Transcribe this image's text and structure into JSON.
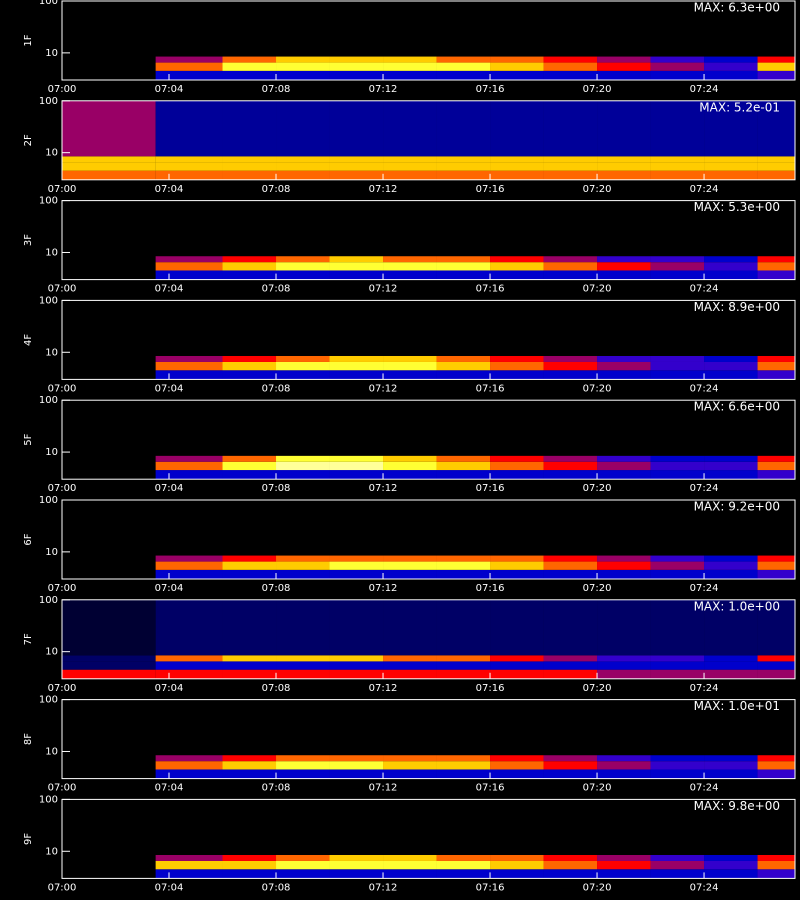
{
  "chart_data": [
    {
      "type": "heatmap",
      "ylabel": "1F",
      "annotation": "MAX: 6.3e+00",
      "log_y": true,
      "xlim": [
        0,
        27.4
      ],
      "ylim": [
        3,
        100
      ],
      "yticks": [
        10,
        100
      ],
      "xticks": [
        {
          "value": 0,
          "label": "07:00"
        },
        {
          "value": 4,
          "label": "07:04"
        },
        {
          "value": 8,
          "label": "07:08"
        },
        {
          "value": 12,
          "label": "07:12"
        },
        {
          "value": 16,
          "label": "07:16"
        },
        {
          "value": 20,
          "label": "07:20"
        },
        {
          "value": 24,
          "label": "07:24"
        }
      ],
      "xbins": [
        0,
        3.5,
        6,
        8,
        10,
        12,
        14,
        16,
        18,
        20,
        22,
        24,
        26,
        27.4
      ],
      "ybins": [
        3,
        4.5,
        6.5,
        8.5,
        100
      ],
      "zlim": [
        0,
        10
      ],
      "colormap": [
        "#000000",
        "#0000ff",
        "#ff0000",
        "#ffff00",
        "#ffffff"
      ],
      "z": [
        [
          0,
          2,
          2,
          2,
          2,
          2,
          2,
          2,
          2,
          2,
          2,
          2,
          3
        ],
        [
          0,
          6,
          8,
          8,
          8,
          8,
          8,
          7,
          6,
          5,
          4,
          3,
          7
        ],
        [
          0,
          4,
          6,
          7,
          7,
          7,
          6,
          6,
          5,
          4,
          3,
          2,
          5
        ],
        [
          0,
          0,
          0,
          0,
          0,
          0,
          0,
          0,
          0,
          0,
          0,
          0,
          0
        ]
      ]
    },
    {
      "type": "heatmap",
      "ylabel": "2F",
      "annotation": "MAX: 5.2e-01",
      "log_y": true,
      "xlim": [
        0,
        27.4
      ],
      "ylim": [
        3,
        100
      ],
      "yticks": [
        10,
        100
      ],
      "xticks": [
        {
          "value": 0,
          "label": "07:00"
        },
        {
          "value": 4,
          "label": "07:04"
        },
        {
          "value": 8,
          "label": "07:08"
        },
        {
          "value": 12,
          "label": "07:12"
        },
        {
          "value": 16,
          "label": "07:16"
        },
        {
          "value": 20,
          "label": "07:20"
        },
        {
          "value": 24,
          "label": "07:24"
        }
      ],
      "xbins": [
        0,
        3.5,
        6,
        8,
        10,
        12,
        14,
        16,
        18,
        20,
        22,
        24,
        26,
        27.4
      ],
      "ybins": [
        3,
        4.5,
        6.5,
        8.5,
        100
      ],
      "zlim": [
        0,
        10
      ],
      "colormap": [
        "#000000",
        "#0000ff",
        "#ff0000",
        "#ffff00",
        "#ffffff"
      ],
      "z": [
        [
          6,
          6,
          6,
          6,
          6,
          6,
          6,
          6,
          6,
          6,
          6,
          6,
          6
        ],
        [
          7,
          7,
          7,
          7,
          7,
          7,
          7,
          7,
          7,
          7,
          7,
          7,
          7
        ],
        [
          7,
          7,
          7,
          7,
          7,
          7,
          7,
          7,
          7,
          7,
          7,
          7,
          7
        ],
        [
          4,
          1.5,
          1.5,
          1.5,
          1.5,
          1.5,
          1.5,
          1.5,
          1.5,
          1.5,
          1.5,
          1.5,
          1.5
        ]
      ]
    },
    {
      "type": "heatmap",
      "ylabel": "3F",
      "annotation": "MAX: 5.3e+00",
      "log_y": true,
      "xlim": [
        0,
        27.4
      ],
      "ylim": [
        3,
        100
      ],
      "yticks": [
        10,
        100
      ],
      "xticks": [
        {
          "value": 0,
          "label": "07:00"
        },
        {
          "value": 4,
          "label": "07:04"
        },
        {
          "value": 8,
          "label": "07:08"
        },
        {
          "value": 12,
          "label": "07:12"
        },
        {
          "value": 16,
          "label": "07:16"
        },
        {
          "value": 20,
          "label": "07:20"
        },
        {
          "value": 24,
          "label": "07:24"
        }
      ],
      "xbins": [
        0,
        3.5,
        6,
        8,
        10,
        12,
        14,
        16,
        18,
        20,
        22,
        24,
        26,
        27.4
      ],
      "ybins": [
        3,
        4.5,
        6.5,
        8.5,
        100
      ],
      "zlim": [
        0,
        10
      ],
      "colormap": [
        "#000000",
        "#0000ff",
        "#ff0000",
        "#ffff00",
        "#ffffff"
      ],
      "z": [
        [
          0,
          2,
          2,
          2,
          2,
          2,
          2,
          2,
          2,
          2,
          2,
          2,
          3
        ],
        [
          0,
          6,
          7,
          8,
          8,
          8,
          8,
          7,
          6,
          5,
          4,
          3,
          6
        ],
        [
          0,
          4,
          5,
          6,
          7,
          6,
          6,
          5,
          4,
          3,
          3,
          2,
          5
        ],
        [
          0,
          0,
          0,
          0,
          0,
          0,
          0,
          0,
          0,
          0,
          0,
          0,
          0
        ]
      ]
    },
    {
      "type": "heatmap",
      "ylabel": "4F",
      "annotation": "MAX: 8.9e+00",
      "log_y": true,
      "xlim": [
        0,
        27.4
      ],
      "ylim": [
        3,
        100
      ],
      "yticks": [
        10,
        100
      ],
      "xticks": [
        {
          "value": 0,
          "label": "07:00"
        },
        {
          "value": 4,
          "label": "07:04"
        },
        {
          "value": 8,
          "label": "07:08"
        },
        {
          "value": 12,
          "label": "07:12"
        },
        {
          "value": 16,
          "label": "07:16"
        },
        {
          "value": 20,
          "label": "07:20"
        },
        {
          "value": 24,
          "label": "07:24"
        }
      ],
      "xbins": [
        0,
        3.5,
        6,
        8,
        10,
        12,
        14,
        16,
        18,
        20,
        22,
        24,
        26,
        27.4
      ],
      "ybins": [
        3,
        4.5,
        6.5,
        8.5,
        100
      ],
      "zlim": [
        0,
        10
      ],
      "colormap": [
        "#000000",
        "#0000ff",
        "#ff0000",
        "#ffff00",
        "#ffffff"
      ],
      "z": [
        [
          0,
          2,
          2,
          2,
          2,
          2,
          2,
          2,
          2,
          2,
          2,
          2,
          3
        ],
        [
          0,
          6,
          7,
          8,
          8,
          8,
          7,
          6,
          5,
          4,
          3,
          3,
          6
        ],
        [
          0,
          4,
          5,
          6,
          7,
          7,
          6,
          5,
          4,
          3,
          3,
          2,
          5
        ],
        [
          0,
          0,
          0,
          0,
          0,
          0,
          0,
          0,
          0,
          0,
          0,
          0,
          0
        ]
      ]
    },
    {
      "type": "heatmap",
      "ylabel": "5F",
      "annotation": "MAX: 6.6e+00",
      "log_y": true,
      "xlim": [
        0,
        27.4
      ],
      "ylim": [
        3,
        100
      ],
      "yticks": [
        10,
        100
      ],
      "xticks": [
        {
          "value": 0,
          "label": "07:00"
        },
        {
          "value": 4,
          "label": "07:04"
        },
        {
          "value": 8,
          "label": "07:08"
        },
        {
          "value": 12,
          "label": "07:12"
        },
        {
          "value": 16,
          "label": "07:16"
        },
        {
          "value": 20,
          "label": "07:20"
        },
        {
          "value": 24,
          "label": "07:24"
        }
      ],
      "xbins": [
        0,
        3.5,
        6,
        8,
        10,
        12,
        14,
        16,
        18,
        20,
        22,
        24,
        26,
        27.4
      ],
      "ybins": [
        3,
        4.5,
        6.5,
        8.5,
        100
      ],
      "zlim": [
        0,
        10
      ],
      "colormap": [
        "#000000",
        "#0000ff",
        "#ff0000",
        "#ffff00",
        "#ffffff"
      ],
      "z": [
        [
          0,
          2,
          2,
          2,
          2,
          2,
          2,
          2,
          2,
          2,
          2,
          2,
          3
        ],
        [
          0,
          6,
          8,
          9,
          9,
          8,
          7,
          6,
          5,
          4,
          3,
          3,
          6
        ],
        [
          0,
          4,
          6,
          8,
          8,
          7,
          6,
          5,
          4,
          3,
          2,
          2,
          5
        ],
        [
          0,
          0,
          0,
          0,
          0,
          0,
          0,
          0,
          0,
          0,
          0,
          0,
          0
        ]
      ]
    },
    {
      "type": "heatmap",
      "ylabel": "6F",
      "annotation": "MAX: 9.2e+00",
      "log_y": true,
      "xlim": [
        0,
        27.4
      ],
      "ylim": [
        3,
        100
      ],
      "yticks": [
        10,
        100
      ],
      "xticks": [
        {
          "value": 0,
          "label": "07:00"
        },
        {
          "value": 4,
          "label": "07:04"
        },
        {
          "value": 8,
          "label": "07:08"
        },
        {
          "value": 12,
          "label": "07:12"
        },
        {
          "value": 16,
          "label": "07:16"
        },
        {
          "value": 20,
          "label": "07:20"
        },
        {
          "value": 24,
          "label": "07:24"
        }
      ],
      "xbins": [
        0,
        3.5,
        6,
        8,
        10,
        12,
        14,
        16,
        18,
        20,
        22,
        24,
        26,
        27.4
      ],
      "ybins": [
        3,
        4.5,
        6.5,
        8.5,
        100
      ],
      "zlim": [
        0,
        10
      ],
      "colormap": [
        "#000000",
        "#0000ff",
        "#ff0000",
        "#ffff00",
        "#ffffff"
      ],
      "z": [
        [
          0,
          2,
          2,
          2,
          2,
          2,
          2,
          2,
          2,
          2,
          2,
          2,
          3
        ],
        [
          0,
          6,
          7,
          7,
          8,
          8,
          8,
          7,
          6,
          5,
          4,
          3,
          6
        ],
        [
          0,
          4,
          5,
          6,
          6,
          6,
          6,
          6,
          5,
          4,
          3,
          2,
          5
        ],
        [
          0,
          0,
          0,
          0,
          0,
          0,
          0,
          0,
          0,
          0,
          0,
          0,
          0
        ]
      ]
    },
    {
      "type": "heatmap",
      "ylabel": "7F",
      "annotation": "MAX: 1.0e+00",
      "log_y": true,
      "xlim": [
        0,
        27.4
      ],
      "ylim": [
        3,
        100
      ],
      "yticks": [
        10,
        100
      ],
      "xticks": [
        {
          "value": 0,
          "label": "07:00"
        },
        {
          "value": 4,
          "label": "07:04"
        },
        {
          "value": 8,
          "label": "07:08"
        },
        {
          "value": 12,
          "label": "07:12"
        },
        {
          "value": 16,
          "label": "07:16"
        },
        {
          "value": 20,
          "label": "07:20"
        },
        {
          "value": 24,
          "label": "07:24"
        }
      ],
      "xbins": [
        0,
        3.5,
        6,
        8,
        10,
        12,
        14,
        16,
        18,
        20,
        22,
        24,
        26,
        27.4
      ],
      "ybins": [
        3,
        4.5,
        6.5,
        8.5,
        100
      ],
      "zlim": [
        0,
        10
      ],
      "colormap": [
        "#000000",
        "#0000ff",
        "#ff0000",
        "#ffff00",
        "#ffffff"
      ],
      "z": [
        [
          5,
          5,
          5,
          5,
          5,
          5,
          5,
          5,
          5,
          4,
          4,
          4,
          4
        ],
        [
          1,
          2,
          2,
          2,
          2,
          2,
          2,
          2,
          2,
          2,
          2,
          2,
          2
        ],
        [
          1,
          6,
          7,
          7,
          7,
          6,
          6,
          5,
          4,
          3,
          3,
          2,
          5
        ],
        [
          0.5,
          1,
          1,
          1,
          1,
          1,
          1,
          1,
          1,
          1,
          1,
          1,
          1
        ]
      ]
    },
    {
      "type": "heatmap",
      "ylabel": "8F",
      "annotation": "MAX: 1.0e+01",
      "log_y": true,
      "xlim": [
        0,
        27.4
      ],
      "ylim": [
        3,
        100
      ],
      "yticks": [
        10,
        100
      ],
      "xticks": [
        {
          "value": 0,
          "label": "07:00"
        },
        {
          "value": 4,
          "label": "07:04"
        },
        {
          "value": 8,
          "label": "07:08"
        },
        {
          "value": 12,
          "label": "07:12"
        },
        {
          "value": 16,
          "label": "07:16"
        },
        {
          "value": 20,
          "label": "07:20"
        },
        {
          "value": 24,
          "label": "07:24"
        }
      ],
      "xbins": [
        0,
        3.5,
        6,
        8,
        10,
        12,
        14,
        16,
        18,
        20,
        22,
        24,
        26,
        27.4
      ],
      "ybins": [
        3,
        4.5,
        6.5,
        8.5,
        100
      ],
      "zlim": [
        0,
        10
      ],
      "colormap": [
        "#000000",
        "#0000ff",
        "#ff0000",
        "#ffff00",
        "#ffffff"
      ],
      "z": [
        [
          0,
          2,
          2,
          2,
          2,
          2,
          2,
          2,
          2,
          2,
          2,
          2,
          3
        ],
        [
          0,
          6,
          7,
          8,
          8,
          7,
          7,
          6,
          5,
          4,
          3,
          3,
          6
        ],
        [
          0,
          4,
          5,
          6,
          6,
          6,
          6,
          5,
          4,
          3,
          2,
          2,
          5
        ],
        [
          0,
          0,
          0,
          0,
          0,
          0,
          0,
          0,
          0,
          0,
          0,
          0,
          0
        ]
      ]
    },
    {
      "type": "heatmap",
      "ylabel": "9F",
      "annotation": "MAX: 9.8e+00",
      "log_y": true,
      "xlim": [
        0,
        27.4
      ],
      "ylim": [
        3,
        100
      ],
      "yticks": [
        10,
        100
      ],
      "xticks": [
        {
          "value": 0,
          "label": "07:00"
        },
        {
          "value": 4,
          "label": "07:04"
        },
        {
          "value": 8,
          "label": "07:08"
        },
        {
          "value": 12,
          "label": "07:12"
        },
        {
          "value": 16,
          "label": "07:16"
        },
        {
          "value": 20,
          "label": "07:20"
        },
        {
          "value": 24,
          "label": "07:24"
        }
      ],
      "xbins": [
        0,
        3.5,
        6,
        8,
        10,
        12,
        14,
        16,
        18,
        20,
        22,
        24,
        26,
        27.4
      ],
      "ybins": [
        3,
        4.5,
        6.5,
        8.5,
        100
      ],
      "zlim": [
        0,
        10
      ],
      "colormap": [
        "#000000",
        "#0000ff",
        "#ff0000",
        "#ffff00",
        "#ffffff"
      ],
      "z": [
        [
          0,
          2,
          2,
          2,
          2,
          2,
          2,
          2,
          2,
          2,
          2,
          2,
          3
        ],
        [
          0,
          7,
          7,
          8,
          8,
          8,
          8,
          7,
          6,
          5,
          4,
          3,
          6
        ],
        [
          0,
          4,
          5,
          6,
          7,
          7,
          6,
          6,
          5,
          4,
          3,
          2,
          5
        ],
        [
          0,
          0,
          0,
          0,
          0,
          0,
          0,
          0,
          0,
          0,
          0,
          0,
          0
        ]
      ]
    }
  ]
}
